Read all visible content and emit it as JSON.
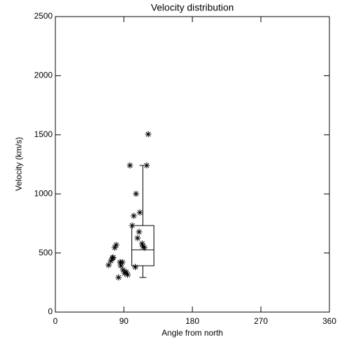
{
  "chart_data": {
    "type": "scatter",
    "title": "Velocity distribution",
    "x_label": "Angle from north",
    "y_label": "Velocity (km/s)",
    "x": [
      70,
      73,
      75,
      76,
      78,
      80,
      83,
      85,
      86,
      88,
      89,
      91,
      93,
      95,
      98,
      101,
      103,
      105,
      106,
      108,
      110,
      111,
      114,
      115,
      117,
      120,
      122
    ],
    "values": [
      398,
      433,
      457,
      462,
      545,
      568,
      293,
      422,
      392,
      422,
      357,
      328,
      340,
      316,
      1241,
      732,
      814,
      381,
      1001,
      626,
      679,
      843,
      580,
      556,
      545,
      1241,
      1505
    ],
    "color": "#000000",
    "box": {
      "position": 115,
      "whislo": 293,
      "q1": 392,
      "median": 527,
      "q3": 732,
      "whishi": 1241
    },
    "xlim": [
      0,
      360
    ],
    "xticks": [
      0,
      90,
      180,
      270,
      360
    ],
    "ylim": [
      0,
      2500
    ],
    "yticks": [
      0,
      500,
      1000,
      1500,
      2000,
      2500
    ],
    "grid": false
  }
}
